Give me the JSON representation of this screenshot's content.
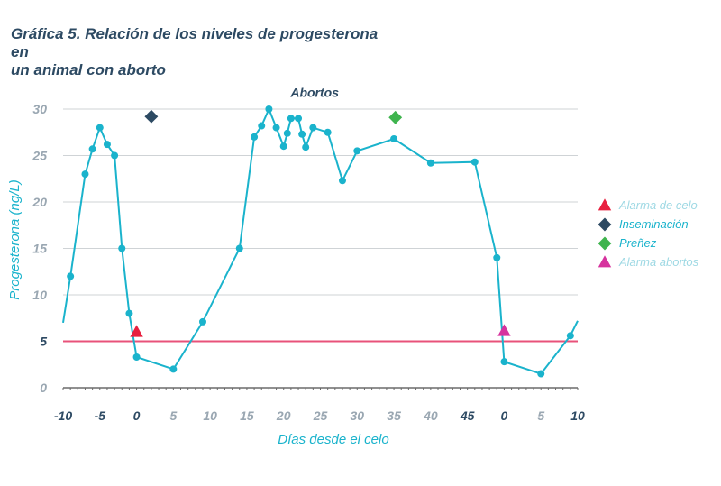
{
  "title_lines": [
    "Gráfica 5. Relación de los niveles de progesterona en",
    "un animal con aborto"
  ],
  "chart_data": {
    "type": "line",
    "xlabel": "Días desde el celo",
    "ylabel": "Progesterona (ng/L)",
    "ylim": [
      0,
      30
    ],
    "yticks": [
      "0",
      "5",
      "10",
      "15",
      "20",
      "25",
      "30"
    ],
    "xticks": [
      {
        "label": "-10",
        "emph": true
      },
      {
        "label": "-5",
        "emph": true
      },
      {
        "label": "0",
        "emph": true
      },
      {
        "label": "5",
        "emph": false
      },
      {
        "label": "10",
        "emph": false
      },
      {
        "label": "15",
        "emph": false
      },
      {
        "label": "20",
        "emph": false
      },
      {
        "label": "25",
        "emph": false
      },
      {
        "label": "30",
        "emph": false
      },
      {
        "label": "35",
        "emph": false
      },
      {
        "label": "40",
        "emph": false
      },
      {
        "label": "45",
        "emph": true
      },
      {
        "label": "0",
        "emph": true
      },
      {
        "label": "5",
        "emph": false
      },
      {
        "label": "10",
        "emph": true
      }
    ],
    "series": [
      {
        "color": "#1ab3cc",
        "points": [
          [
            -10,
            7
          ],
          [
            -9,
            12
          ],
          [
            -7,
            23
          ],
          [
            -6,
            25.7
          ],
          [
            -5,
            28
          ],
          [
            -4,
            26.2
          ],
          [
            -3,
            25
          ],
          [
            -2,
            15
          ],
          [
            -1,
            8
          ],
          [
            0,
            3.3
          ],
          [
            5,
            2
          ],
          [
            9,
            7.1
          ],
          [
            14,
            15
          ],
          [
            16,
            27
          ],
          [
            17,
            28.2
          ],
          [
            18,
            30
          ],
          [
            19,
            28
          ],
          [
            20,
            26
          ],
          [
            20.5,
            27.4
          ],
          [
            21,
            29
          ],
          [
            22,
            29
          ],
          [
            22.5,
            27.3
          ],
          [
            23,
            25.9
          ],
          [
            24,
            28
          ],
          [
            26,
            27.5
          ],
          [
            28,
            22.3
          ],
          [
            30,
            25.5
          ],
          [
            35,
            26.8
          ],
          [
            40,
            24.2
          ],
          [
            46,
            24.3
          ],
          [
            49,
            14
          ],
          [
            50,
            2.8
          ],
          [
            55,
            1.5
          ],
          [
            59,
            5.6
          ],
          [
            60,
            7.2
          ]
        ]
      }
    ],
    "threshold": {
      "value": 5,
      "color": "#e8527a"
    },
    "events": [
      {
        "x": 0,
        "y": 6,
        "shape": "triangle",
        "color": "#e8203f"
      },
      {
        "x": 2,
        "y": 29.2,
        "shape": "diamond",
        "color": "#2d4a63"
      },
      {
        "x": 35.2,
        "y": 29.1,
        "shape": "diamond",
        "color": "#3fb44e"
      },
      {
        "x": 50,
        "y": 6.1,
        "shape": "triangle",
        "color": "#d6339e"
      }
    ],
    "annotation": {
      "text": "Abortos",
      "x": 23,
      "y": 31.6
    },
    "legend": {
      "position": "right",
      "items": [
        {
          "label": "Alarma de celo",
          "shape": "triangle",
          "color": "#e8203f",
          "text_color": "#9fd9e4"
        },
        {
          "label": "Inseminación",
          "shape": "diamond",
          "color": "#2d4a63",
          "text_color": "#1ab3cc"
        },
        {
          "label": "Preñez",
          "shape": "diamond",
          "color": "#3fb44e",
          "text_color": "#1ab3cc"
        },
        {
          "label": "Alarma abortos",
          "shape": "triangle",
          "color": "#d6339e",
          "text_color": "#9fd9e4"
        }
      ]
    }
  }
}
